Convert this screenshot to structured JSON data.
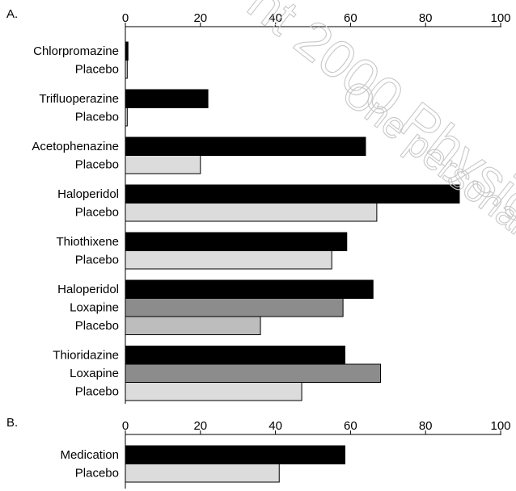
{
  "chart_data": [
    {
      "type": "bar",
      "orientation": "horizontal",
      "title": "A.",
      "xlim": [
        0,
        100
      ],
      "xticks": [
        "0",
        "20",
        "40",
        "60",
        "80",
        "100"
      ],
      "grid": false,
      "groups": [
        {
          "drug": "Chlorpromazine",
          "bars": [
            {
              "label": "Chlorpromazine",
              "value": 0.7,
              "color": "#000000"
            },
            {
              "label": "Placebo",
              "value": 0.5,
              "color": "#dcdcdc"
            }
          ]
        },
        {
          "drug": "Trifluoperazine",
          "bars": [
            {
              "label": "Trifluoperazine",
              "value": 22,
              "color": "#000000"
            },
            {
              "label": "Placebo",
              "value": 0.5,
              "color": "#dcdcdc"
            }
          ]
        },
        {
          "drug": "Acetophenazine",
          "bars": [
            {
              "label": "Acetophenazine",
              "value": 64,
              "color": "#000000"
            },
            {
              "label": "Placebo",
              "value": 20,
              "color": "#dcdcdc"
            }
          ]
        },
        {
          "drug": "Haloperidol",
          "bars": [
            {
              "label": "Haloperidol",
              "value": 89,
              "color": "#000000"
            },
            {
              "label": "Placebo",
              "value": 67,
              "color": "#dcdcdc"
            }
          ]
        },
        {
          "drug": "Thiothixene",
          "bars": [
            {
              "label": "Thiothixene",
              "value": 59,
              "color": "#000000"
            },
            {
              "label": "Placebo",
              "value": 55,
              "color": "#dcdcdc"
            }
          ]
        },
        {
          "drug": "Haloperidol",
          "bars": [
            {
              "label": "Haloperidol",
              "value": 66,
              "color": "#000000"
            },
            {
              "label": "Loxapine",
              "value": 58,
              "color": "#8c8c8c"
            },
            {
              "label": "Placebo",
              "value": 36,
              "color": "#bdbdbd"
            }
          ]
        },
        {
          "drug": "Thioridazine",
          "bars": [
            {
              "label": "Thioridazine",
              "value": 58.5,
              "color": "#000000"
            },
            {
              "label": "Loxapine",
              "value": 68,
              "color": "#8c8c8c"
            },
            {
              "label": "Placebo",
              "value": 47,
              "color": "#dcdcdc"
            }
          ]
        }
      ]
    },
    {
      "type": "bar",
      "orientation": "horizontal",
      "title": "B.",
      "xlim": [
        0,
        100
      ],
      "xticks": [
        "0",
        "20",
        "40",
        "60",
        "80",
        "100"
      ],
      "grid": false,
      "groups": [
        {
          "drug": "Medication",
          "bars": [
            {
              "label": "Medication",
              "value": 58.5,
              "color": "#000000"
            },
            {
              "label": "Placebo",
              "value": 41,
              "color": "#dcdcdc"
            }
          ]
        }
      ]
    }
  ],
  "watermark": {
    "line1": "nt 2000 Physic",
    "line2": "One personal cop",
    "color": "#c8c8c8"
  }
}
